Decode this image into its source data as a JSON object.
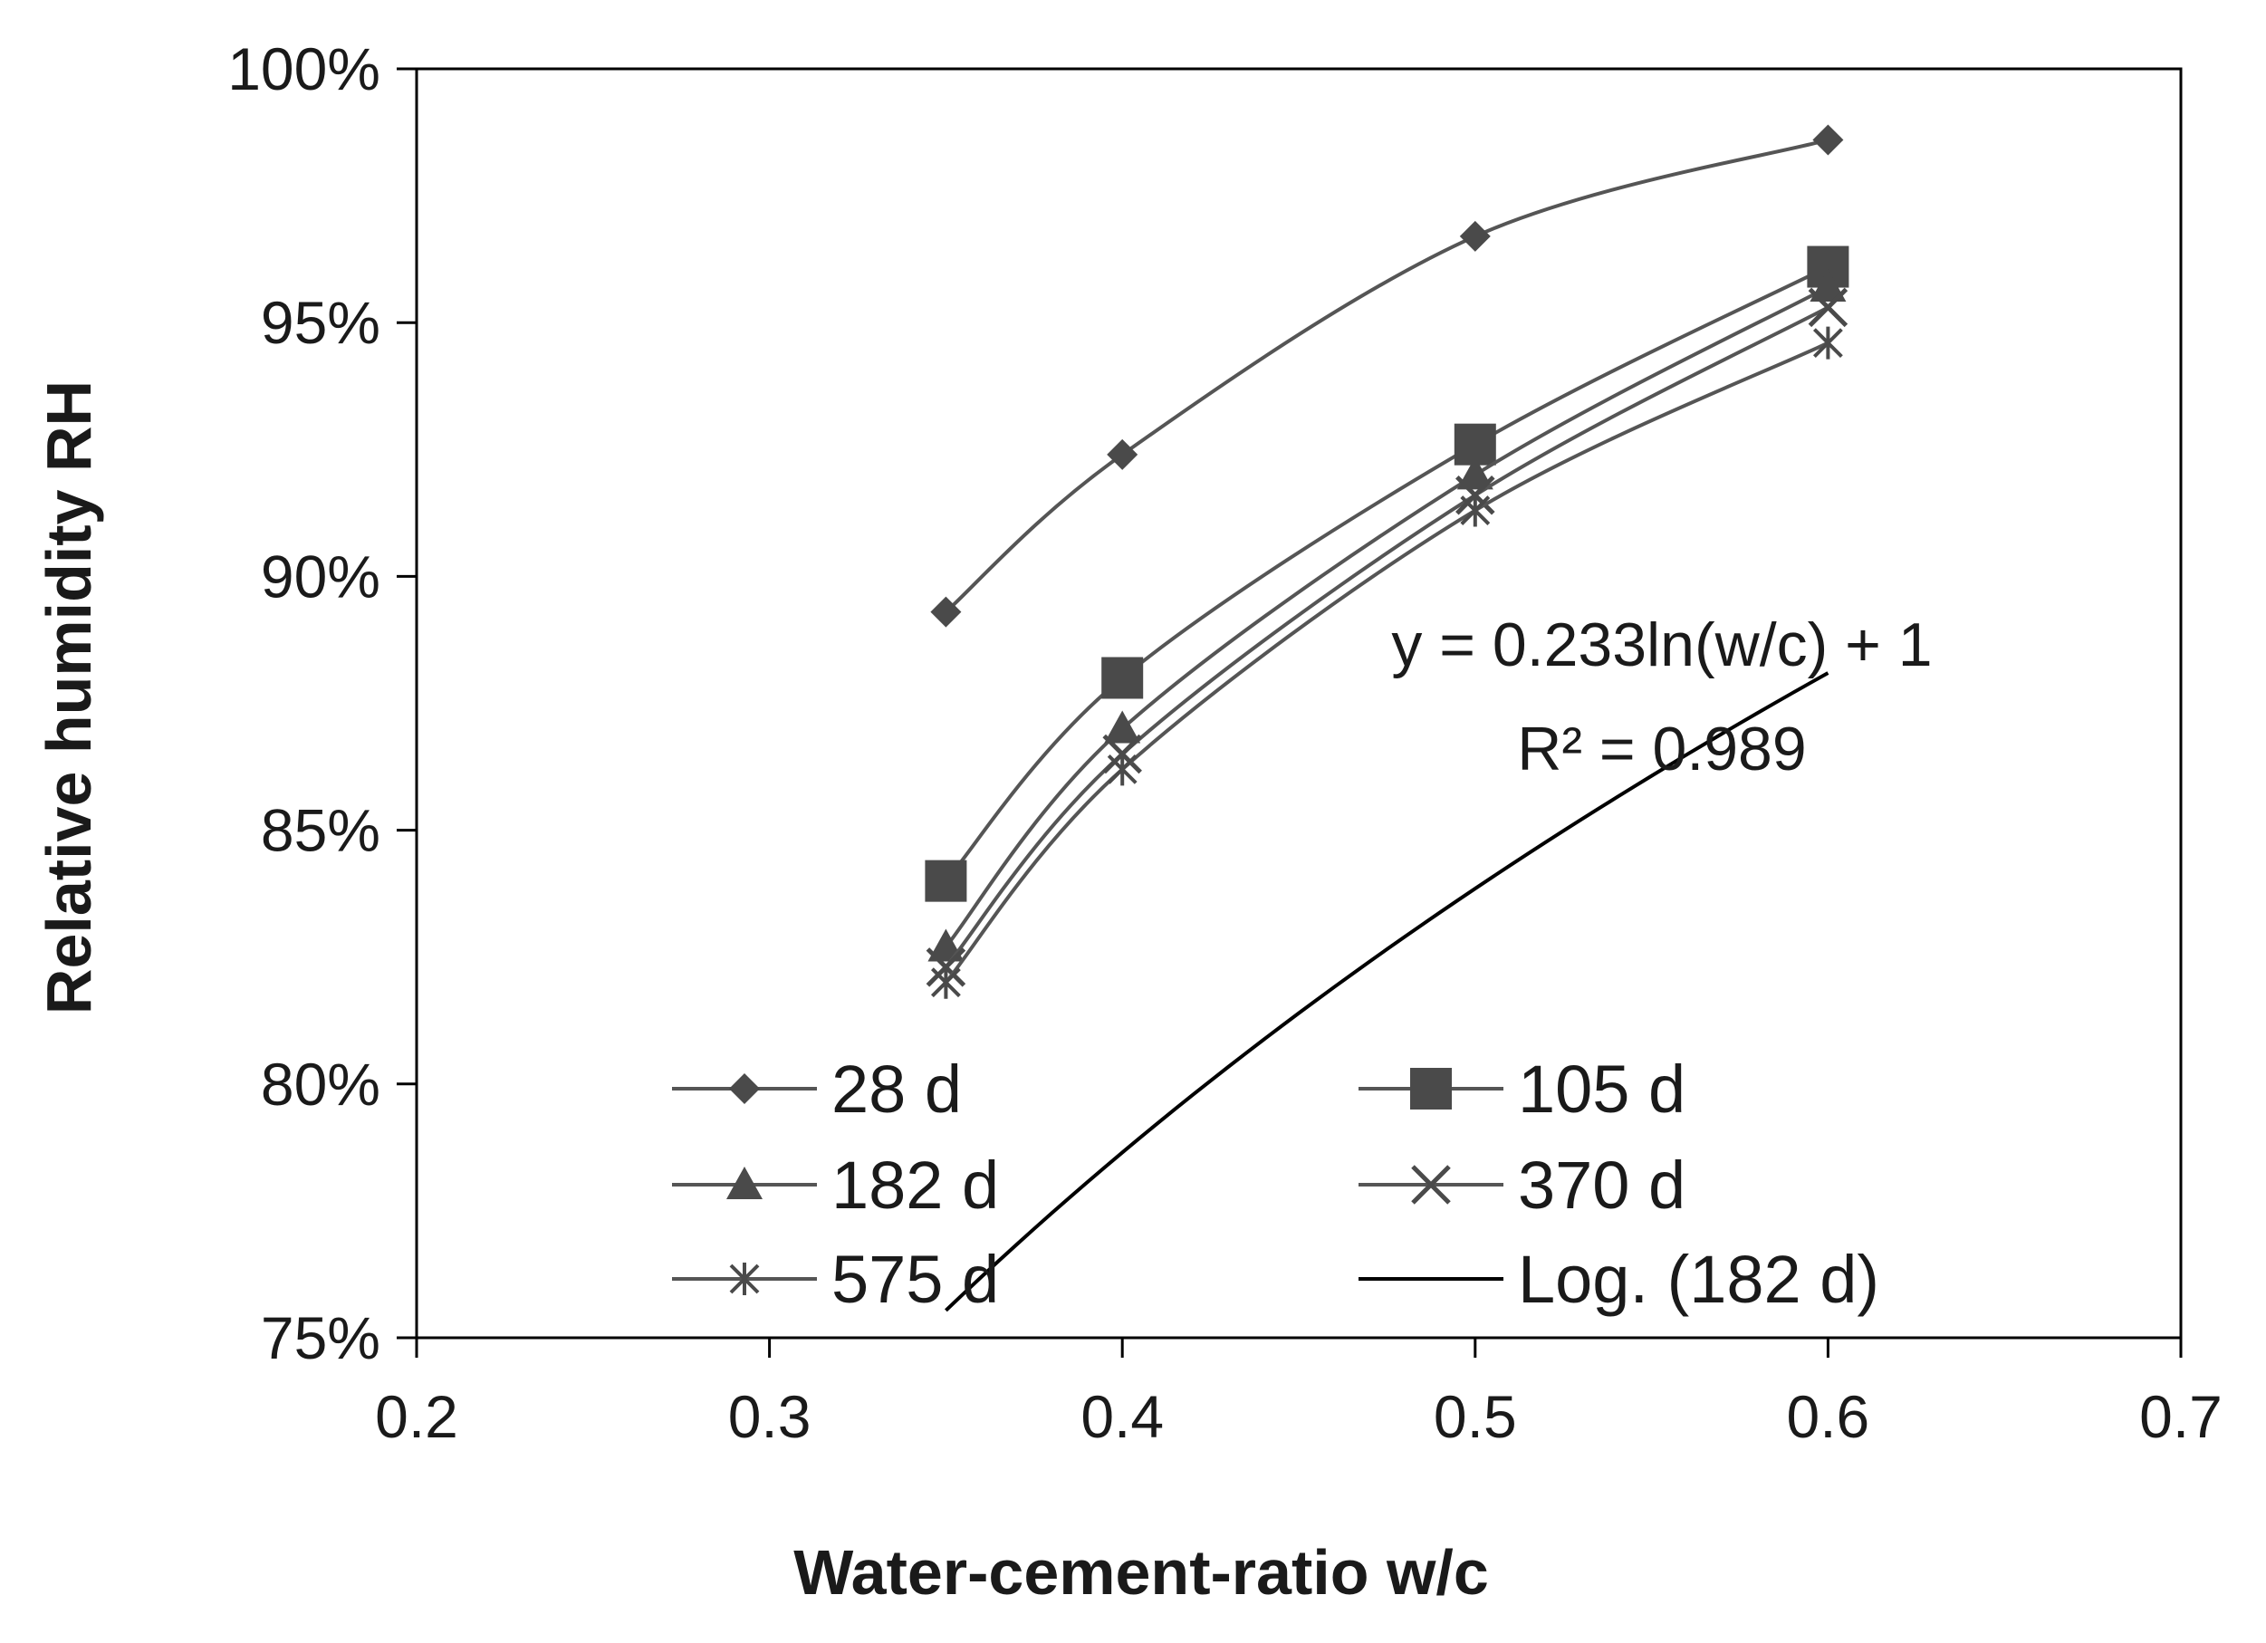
{
  "chart_data": {
    "type": "line",
    "title": "",
    "xlabel": "Water-cement-ratio w/c",
    "ylabel": "Relative humidity RH",
    "xlim": [
      0.2,
      0.7
    ],
    "ylim": [
      0.75,
      1.0
    ],
    "x_ticks": [
      0.2,
      0.3,
      0.4,
      0.5,
      0.6,
      0.7
    ],
    "x_tick_labels": [
      "0.2",
      "0.3",
      "0.4",
      "0.5",
      "0.6",
      "0.7"
    ],
    "y_ticks": [
      0.75,
      0.8,
      0.85,
      0.9,
      0.95,
      1.0
    ],
    "y_tick_labels": [
      "75%",
      "80%",
      "85%",
      "90%",
      "95%",
      "100%"
    ],
    "grid": false,
    "x": [
      0.35,
      0.4,
      0.5,
      0.6
    ],
    "series": [
      {
        "name": "28 d",
        "marker": "diamond",
        "values": [
          0.893,
          0.924,
          0.967,
          0.986
        ]
      },
      {
        "name": "105 d",
        "marker": "square",
        "values": [
          0.84,
          0.88,
          0.926,
          0.961
        ]
      },
      {
        "name": "182 d",
        "marker": "triangle",
        "values": [
          0.827,
          0.87,
          0.92,
          0.957
        ]
      },
      {
        "name": "370 d",
        "marker": "x",
        "values": [
          0.823,
          0.865,
          0.916,
          0.953
        ]
      },
      {
        "name": "575 d",
        "marker": "star",
        "values": [
          0.82,
          0.862,
          0.913,
          0.946
        ]
      }
    ],
    "trendline": {
      "name": "Log. (182 d)",
      "type": "logarithmic",
      "a": 0.233,
      "b": 1,
      "x_range": [
        0.35,
        0.6
      ]
    },
    "annotation": {
      "equation": "y = 0.233ln(w/c) + 1",
      "r_squared": "R² = 0.989"
    },
    "legend": {
      "placement": "bottom-inside",
      "entries": [
        "28 d",
        "105 d",
        "182 d",
        "370 d",
        "575 d",
        "Log. (182 d)"
      ]
    },
    "colors": {
      "series_line": "#555555",
      "marker": "#4a4a4a",
      "trendline": "#000000",
      "axis": "#000000",
      "text": "#1a1a1a"
    }
  }
}
